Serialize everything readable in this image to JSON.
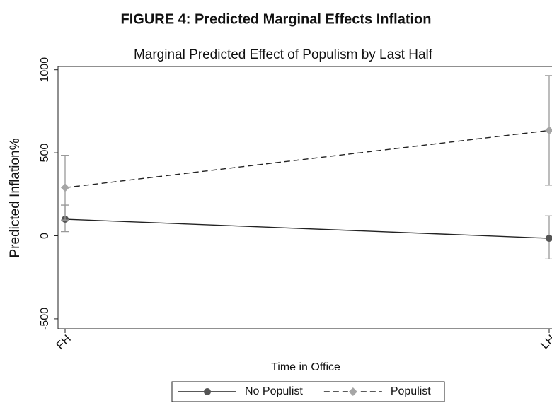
{
  "chart_data": {
    "type": "line",
    "heading": "FIGURE 4: Predicted Marginal Effects Inflation",
    "title": "Marginal Predicted Effect of Populism by Last Half",
    "x_label": "Time in Office",
    "y_label": "Predicted Inflation%",
    "categories": [
      "FH",
      "LH"
    ],
    "series": [
      {
        "name": "No Populist",
        "color": "#555555",
        "marker": "circle",
        "line_style": "solid",
        "values": [
          100,
          -15
        ],
        "ci_low": [
          25,
          -140
        ],
        "ci_high": [
          185,
          120
        ]
      },
      {
        "name": "Populist",
        "color": "#a6a6a6",
        "marker": "diamond",
        "line_style": "dashed",
        "values": [
          290,
          635
        ],
        "ci_low": [
          95,
          305
        ],
        "ci_high": [
          485,
          965
        ]
      }
    ],
    "ylim": [
      -560,
      1020
    ],
    "yticks": [
      -500,
      0,
      500,
      1000
    ],
    "legend": "bottom"
  }
}
